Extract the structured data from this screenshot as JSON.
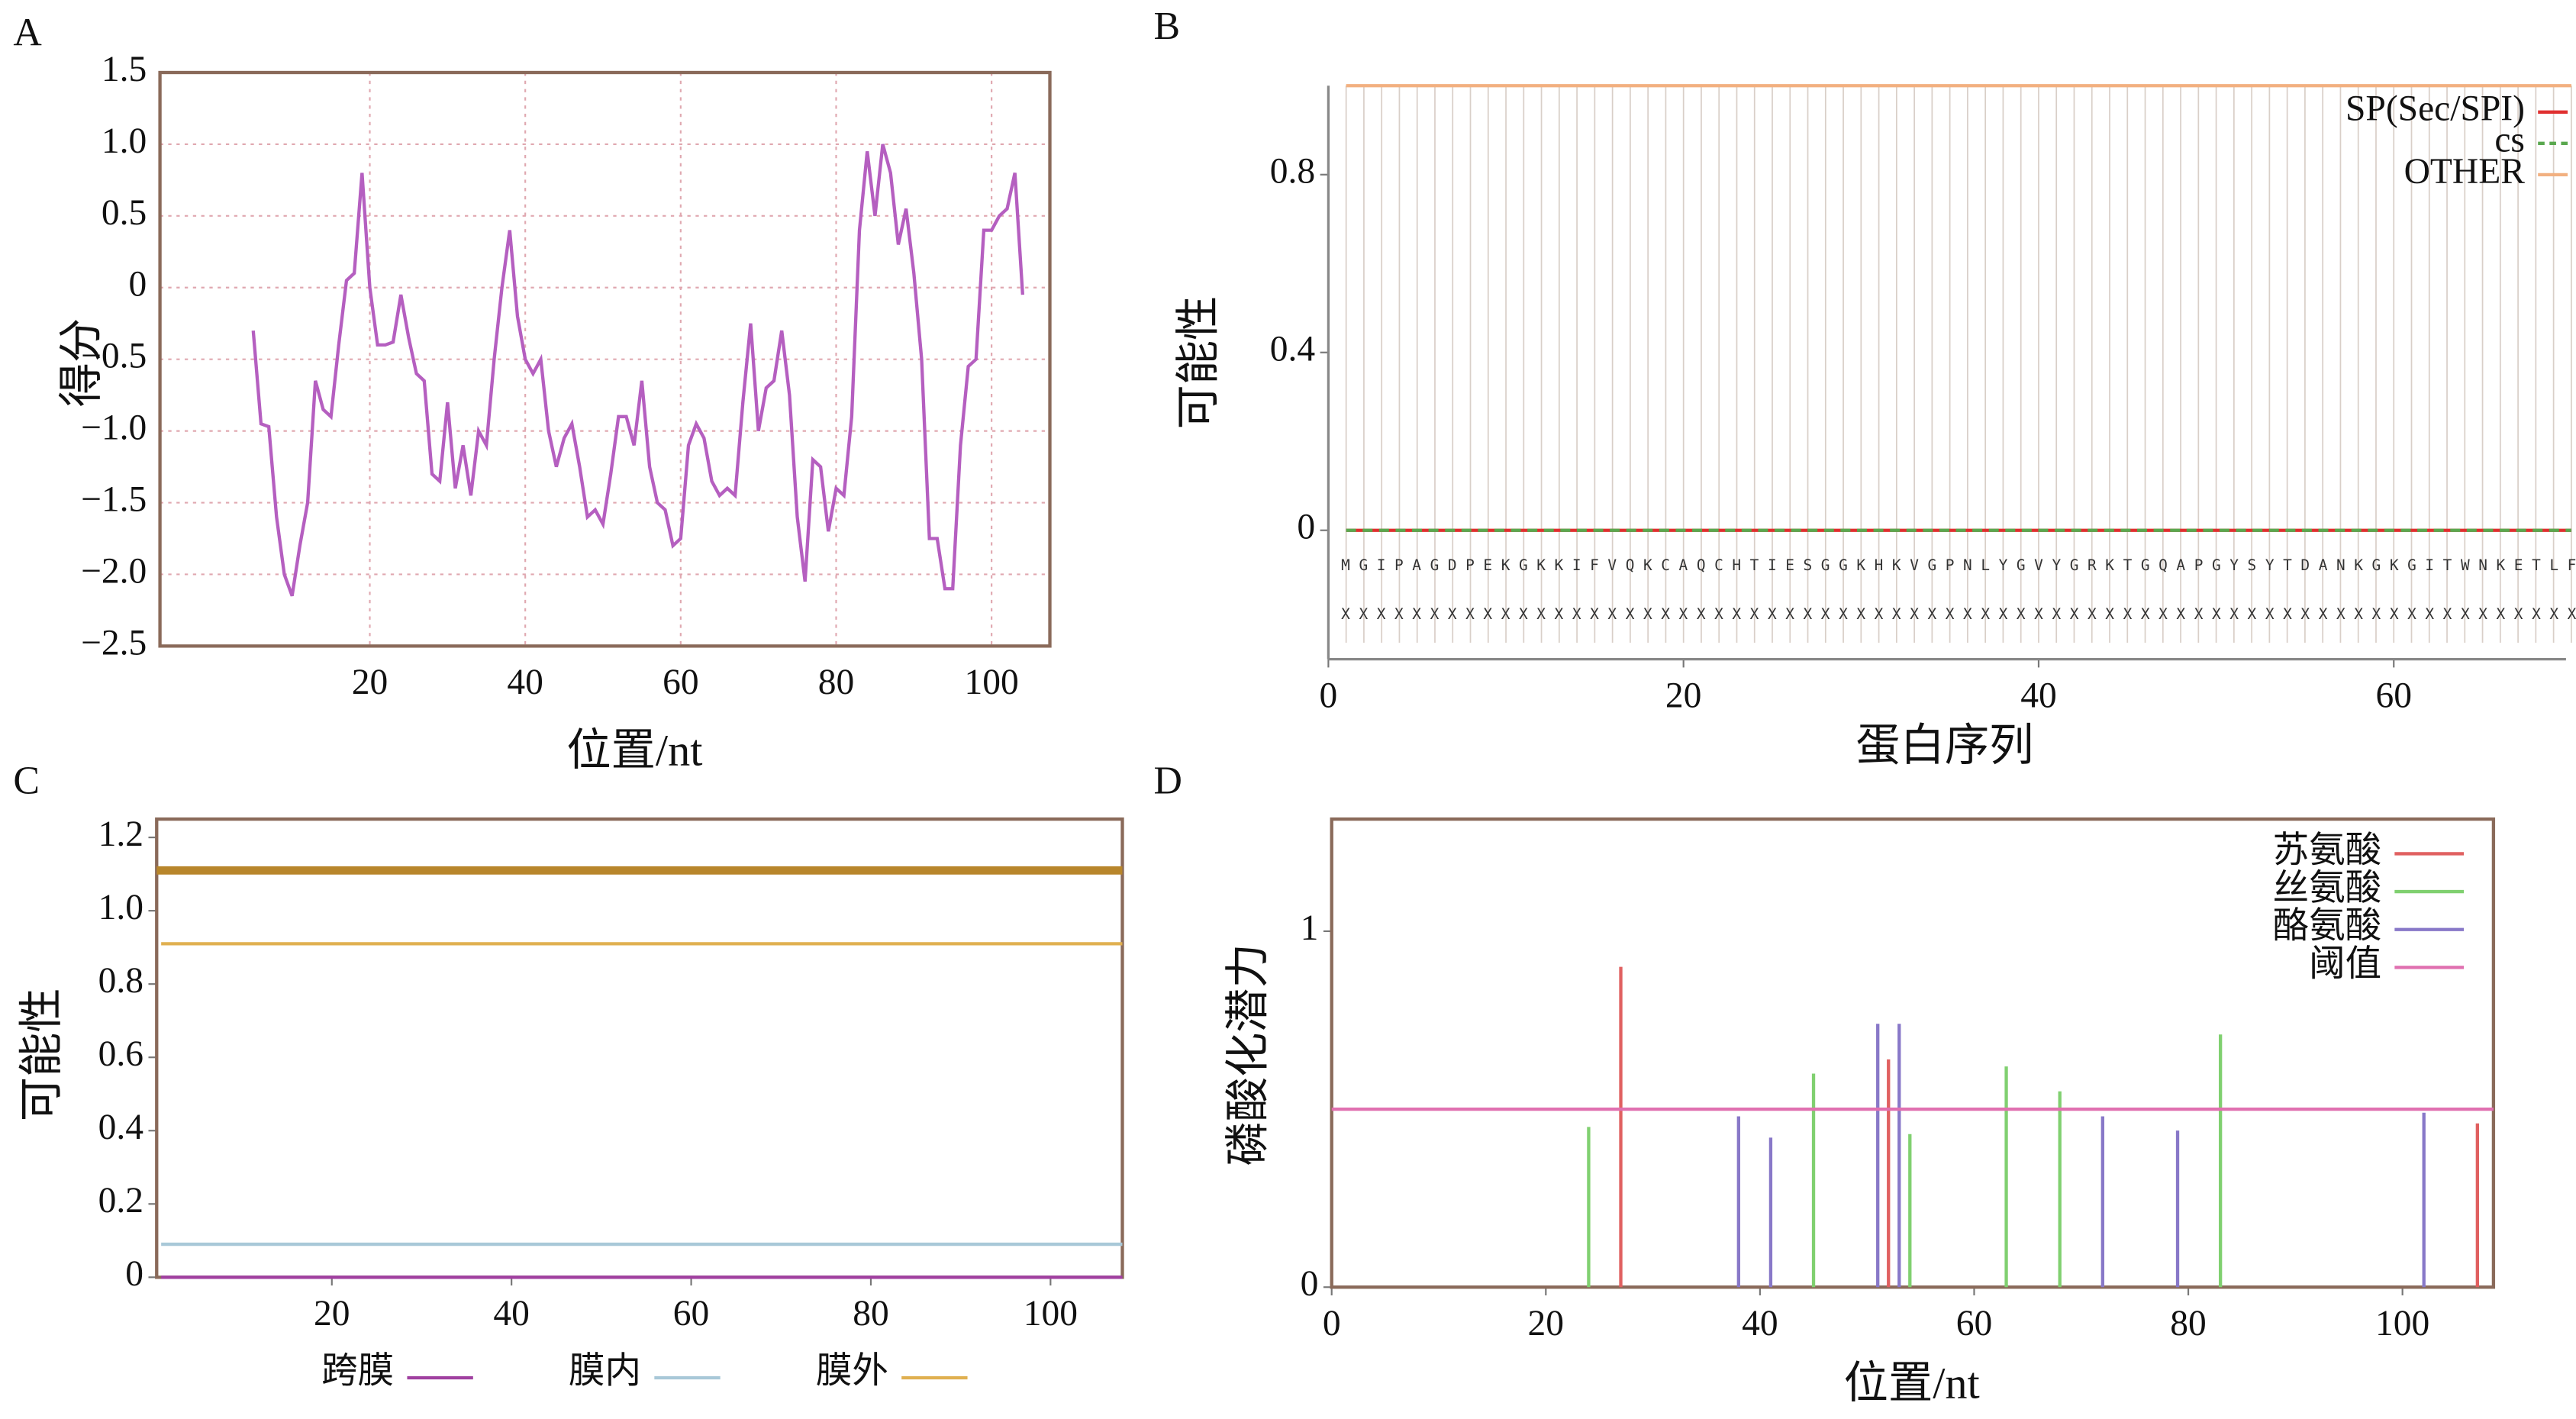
{
  "chart_data": [
    {
      "type": "line",
      "panel_label": "A",
      "x_label": "位置/nt",
      "y_label": "得分",
      "color": "#b55fc0",
      "grid": true,
      "frame": "box",
      "xlim": [
        -7,
        107.5
      ],
      "ylim": [
        -2.5,
        1.5
      ],
      "xticks": [
        20,
        40,
        60,
        80,
        100
      ],
      "yticks": [
        1.5,
        {
          "value": 1.0,
          "label": "1.0"
        },
        0.5,
        0,
        {
          "value": -0.5,
          "label": "−0.5"
        },
        {
          "value": -1.0,
          "label": "−1.0"
        },
        {
          "value": -1.5,
          "label": "−1.5"
        },
        {
          "value": -2.0,
          "label": "−2.0"
        },
        {
          "value": -2.5,
          "label": "−2.5"
        }
      ],
      "x": [
        5,
        6,
        7,
        8,
        9,
        10,
        11,
        12,
        13,
        14,
        15,
        16,
        17,
        18,
        19,
        20,
        21,
        22,
        23,
        24,
        25,
        26,
        27,
        28,
        29,
        30,
        31,
        32,
        33,
        34,
        35,
        36,
        37,
        38,
        39,
        40,
        41,
        42,
        43,
        44,
        45,
        46,
        47,
        48,
        49,
        50,
        51,
        52,
        53,
        54,
        55,
        56,
        57,
        58,
        59,
        60,
        61,
        62,
        63,
        64,
        65,
        66,
        67,
        68,
        69,
        70,
        71,
        72,
        73,
        74,
        75,
        76,
        77,
        78,
        79,
        80,
        81,
        82,
        83,
        84,
        85,
        86,
        87,
        88,
        89,
        90,
        91,
        92,
        93,
        94,
        95,
        96,
        97,
        98,
        99,
        100,
        101,
        102,
        103,
        104
      ],
      "values": [
        -0.3,
        -0.95,
        -0.97,
        -1.6,
        -2.0,
        -2.15,
        -1.8,
        -1.5,
        -0.65,
        -0.85,
        -0.9,
        -0.4,
        0.05,
        0.1,
        0.8,
        0.0,
        -0.4,
        -0.4,
        -0.38,
        -0.05,
        -0.35,
        -0.6,
        -0.65,
        -1.3,
        -1.35,
        -0.8,
        -1.4,
        -1.1,
        -1.45,
        -1.0,
        -1.1,
        -0.5,
        0.0,
        0.4,
        -0.2,
        -0.5,
        -0.6,
        -0.5,
        -1.0,
        -1.25,
        -1.05,
        -0.95,
        -1.25,
        -1.6,
        -1.55,
        -1.65,
        -1.3,
        -0.9,
        -0.9,
        -1.1,
        -0.65,
        -1.25,
        -1.5,
        -1.55,
        -1.8,
        -1.75,
        -1.1,
        -0.95,
        -1.05,
        -1.35,
        -1.45,
        -1.4,
        -1.45,
        -0.8,
        -0.25,
        -1.0,
        -0.7,
        -0.65,
        -0.3,
        -0.75,
        -1.6,
        -2.05,
        -1.2,
        -1.25,
        -1.7,
        -1.4,
        -1.45,
        -0.9,
        0.4,
        0.95,
        0.5,
        1.0,
        0.8,
        0.3,
        0.55,
        0.1,
        -0.5,
        -1.75,
        -1.75,
        -2.1,
        -2.1,
        -1.1,
        -0.55,
        -0.5,
        0.4,
        0.4,
        0.5,
        0.55,
        0.8,
        -0.05
      ]
    },
    {
      "type": "line",
      "panel_label": "B",
      "x_label": "蛋白序列",
      "y_label": "可能性",
      "frame": "axes",
      "grid": false,
      "xlim": [
        0,
        69.7
      ],
      "ylim": [
        -0.29,
        1.0
      ],
      "xticks": [
        0,
        20,
        40,
        60
      ],
      "yticks": [
        0,
        0.4,
        0.8
      ],
      "sequence": "MGIPAGDPEKGKKIFVQKCAQCHTIESGGKHKVGPNLYGVYGRKTGQAPGYSYTDANKGKGITWNKETLF",
      "annotation": "XXXXXXXXXXXXXXXXXXXXXXXXXXXXXXXXXXXXXXXXXXXXXXXXXXXXXXXXXXXXXXXXXXXXXX",
      "x": [
        1,
        70
      ],
      "series": [
        {
          "name": "SP(Sec/SPI)",
          "color": "#e03030",
          "values": [
            0,
            0
          ]
        },
        {
          "name": "cs",
          "color": "#5aa84f",
          "dash": true,
          "values": [
            0,
            0
          ]
        },
        {
          "name": "OTHER",
          "color": "#f2b080",
          "values": [
            1.0,
            1.0
          ]
        }
      ]
    },
    {
      "type": "line",
      "panel_label": "C",
      "y_label": "可能性",
      "frame": "box",
      "grid": false,
      "legend": "bottom",
      "xlim": [
        0.5,
        108
      ],
      "ylim": [
        0,
        1.25
      ],
      "xticks": [
        20,
        40,
        60,
        80,
        100
      ],
      "yticks": [
        0,
        0.2,
        0.4,
        0.6,
        0.8,
        {
          "value": 1.0,
          "label": "1.0"
        },
        1.2
      ],
      "top_bar": {
        "value": 1.11,
        "color": "#b8862b"
      },
      "x": [
        1,
        108
      ],
      "series": [
        {
          "name": "跨膜",
          "color": "#a040a0",
          "values": [
            0,
            0
          ]
        },
        {
          "name": "膜内",
          "color": "#a8c8d8",
          "values": [
            0.09,
            0.09
          ]
        },
        {
          "name": "膜外",
          "color": "#e0b050",
          "values": [
            0.91,
            0.91
          ]
        }
      ]
    },
    {
      "type": "stem",
      "panel_label": "D",
      "x_label": "位置/nt",
      "y_label": "磷酸化潜力",
      "frame": "box",
      "grid": false,
      "xlim": [
        0,
        108.5
      ],
      "ylim": [
        0,
        1.315
      ],
      "xticks": [
        0,
        20,
        40,
        60,
        80,
        100
      ],
      "yticks": [
        0,
        1
      ],
      "series": [
        {
          "name": "苏氨酸",
          "color": "#e06060",
          "x": [
            27,
            52,
            107
          ],
          "values": [
            0.9,
            0.64,
            0.46
          ]
        },
        {
          "name": "丝氨酸",
          "color": "#80d070",
          "x": [
            24,
            45,
            54,
            63,
            68,
            83
          ],
          "values": [
            0.45,
            0.6,
            0.43,
            0.62,
            0.55,
            0.71
          ]
        },
        {
          "name": "酪氨酸",
          "color": "#8878c8",
          "x": [
            38,
            41,
            51,
            53,
            72,
            79,
            102
          ],
          "values": [
            0.48,
            0.42,
            0.74,
            0.74,
            0.48,
            0.44,
            0.49
          ]
        },
        {
          "name": "阈值",
          "color": "#e070b0",
          "style": "line",
          "x": [
            0,
            108.5
          ],
          "values": [
            0.5,
            0.5
          ]
        }
      ]
    }
  ]
}
